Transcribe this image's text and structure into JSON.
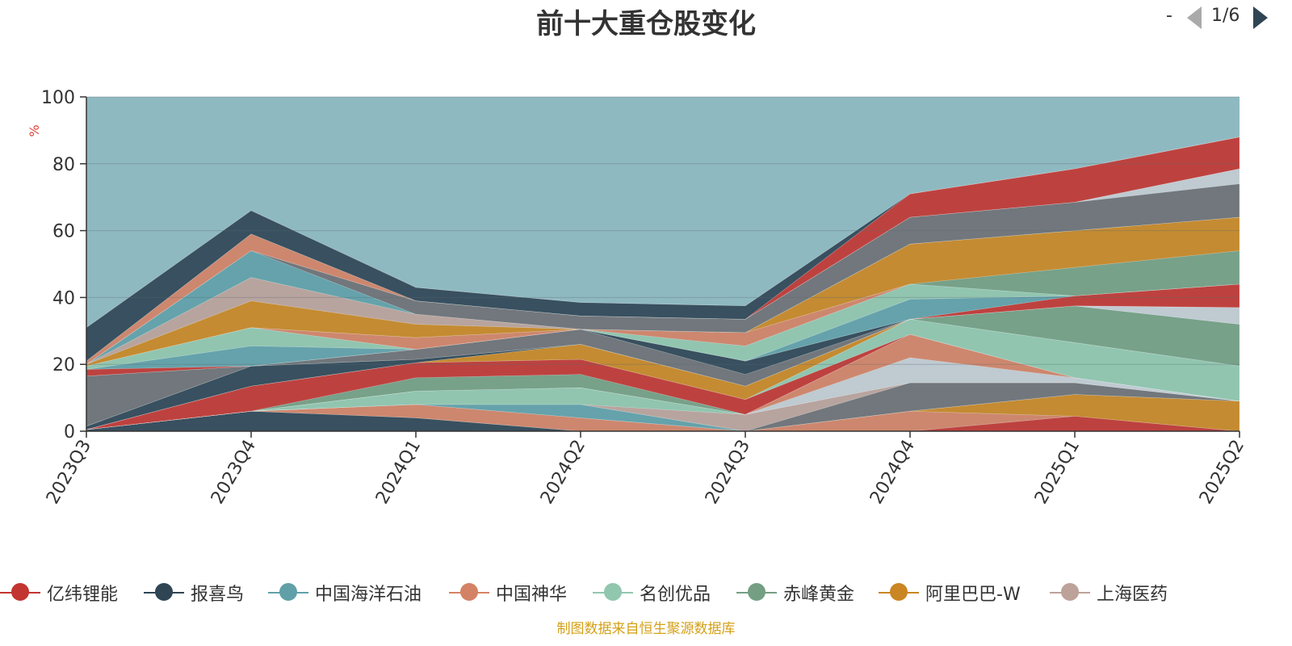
{
  "chart_data": {
    "type": "area",
    "title": "前十大重仓股变化",
    "ylabel": "%",
    "ylim": [
      0,
      100
    ],
    "y_ticks": [
      0,
      20,
      40,
      60,
      80,
      100
    ],
    "grid": true,
    "stacked": true,
    "legend_position": "bottom",
    "categories": [
      "2023Q3",
      "2023Q4",
      "2024Q1",
      "2024Q2",
      "2024Q3",
      "2024Q4",
      "2025Q1",
      "2025Q2"
    ],
    "layers": [
      {
        "color": "#2f4554",
        "values": [
          0.5,
          6,
          4,
          0,
          0,
          0,
          0,
          0
        ]
      },
      {
        "color": "#c23531",
        "values": [
          0,
          0,
          0,
          0,
          0,
          0,
          4.5,
          0
        ]
      },
      {
        "color": "#d48265",
        "values": [
          0,
          0,
          4,
          4,
          0,
          6,
          0,
          0
        ]
      },
      {
        "color": "#ca8622",
        "values": [
          0,
          0,
          0,
          0,
          0,
          0,
          6.5,
          9
        ]
      },
      {
        "color": "#61a0a8",
        "values": [
          0,
          0,
          0,
          4,
          0,
          0,
          0,
          0
        ]
      },
      {
        "color": "#6e7074",
        "values": [
          0,
          0,
          0,
          0,
          0,
          8.5,
          3.5,
          0
        ]
      },
      {
        "color": "#bda29a",
        "values": [
          0,
          0,
          0,
          0,
          5,
          0,
          0,
          0
        ]
      },
      {
        "color": "#91c7ae",
        "values": [
          0,
          0,
          4,
          5,
          0,
          0,
          0,
          0
        ]
      },
      {
        "color": "#c4ccd3",
        "values": [
          0,
          0,
          0,
          0,
          0,
          7.5,
          1.5,
          0
        ]
      },
      {
        "color": "#d48265",
        "values": [
          0,
          0,
          0,
          0,
          0,
          7,
          0,
          0
        ]
      },
      {
        "color": "#749f83",
        "values": [
          0,
          0,
          4,
          4,
          0,
          0,
          0,
          0
        ]
      },
      {
        "color": "#c23531",
        "values": [
          0,
          7.5,
          4.5,
          4.5,
          4.5,
          0,
          0,
          0
        ]
      },
      {
        "color": "#91c7ae",
        "values": [
          0,
          0,
          0,
          0,
          0,
          4.5,
          10.5,
          10.5
        ]
      },
      {
        "color": "#ca8622",
        "values": [
          0,
          0,
          0,
          4.5,
          4,
          0,
          0,
          0
        ]
      },
      {
        "color": "#749f83",
        "values": [
          0,
          0,
          0,
          0,
          0,
          0,
          11,
          12.5
        ]
      },
      {
        "color": "#2f4554",
        "values": [
          1,
          6,
          1,
          0,
          0,
          0,
          0,
          0
        ]
      },
      {
        "color": "#c4ccd3",
        "values": [
          0,
          0,
          0,
          0,
          0,
          0,
          0,
          5
        ]
      },
      {
        "color": "#6e7074",
        "values": [
          15,
          0,
          3,
          4.5,
          3.5,
          0,
          0,
          0
        ]
      },
      {
        "color": "#2f4554",
        "values": [
          0,
          0,
          0,
          0,
          4,
          0,
          0,
          0
        ]
      },
      {
        "color": "#c23531",
        "values": [
          2,
          0,
          0,
          0,
          0,
          0,
          3,
          7
        ]
      },
      {
        "color": "#61a0a8",
        "values": [
          0,
          6,
          0,
          0,
          0,
          6,
          0,
          0
        ]
      },
      {
        "color": "#91c7ae",
        "values": [
          1,
          5.5,
          0,
          0,
          4.5,
          4.5,
          0,
          0
        ]
      },
      {
        "color": "#d48265",
        "values": [
          0,
          0,
          3.5,
          0,
          4,
          0,
          0,
          0
        ]
      },
      {
        "color": "#749f83",
        "values": [
          0,
          0,
          0,
          0,
          0,
          0,
          8.5,
          10
        ]
      },
      {
        "color": "#ca8622",
        "values": [
          0.5,
          8,
          4,
          0,
          0,
          12,
          11,
          10
        ]
      },
      {
        "color": "#bda29a",
        "values": [
          0,
          7,
          3,
          0,
          0,
          0,
          0,
          0
        ]
      },
      {
        "color": "#61a0a8",
        "values": [
          0,
          8,
          0,
          0,
          0,
          0,
          0,
          0
        ]
      },
      {
        "color": "#6e7074",
        "values": [
          0,
          0,
          4,
          4,
          4,
          8,
          8.5,
          10
        ]
      },
      {
        "color": "#c4ccd3",
        "values": [
          0,
          0,
          0,
          0,
          0,
          0,
          0,
          4.5
        ]
      },
      {
        "color": "#d48265",
        "values": [
          1,
          5,
          0,
          0,
          0,
          0,
          0,
          0
        ]
      },
      {
        "color": "#c23531",
        "values": [
          0,
          0,
          0,
          0,
          0,
          7,
          10,
          9.5
        ]
      },
      {
        "color": "#2f4554",
        "values": [
          10,
          7,
          4,
          4,
          4,
          0,
          0,
          0
        ]
      },
      {
        "color": "#61a0a8",
        "values": [
          0,
          0,
          0,
          0,
          0,
          0,
          0,
          0
        ]
      }
    ],
    "series_legend": [
      {
        "name": "亿纬锂能",
        "color": "#c23531"
      },
      {
        "name": "报喜鸟",
        "color": "#2f4554"
      },
      {
        "name": "中国海洋石油",
        "color": "#61a0a8"
      },
      {
        "name": "中国神华",
        "color": "#d48265"
      },
      {
        "name": "名创优品",
        "color": "#91c7ae"
      },
      {
        "name": "赤峰黄金",
        "color": "#749f83"
      },
      {
        "name": "阿里巴巴-W",
        "color": "#ca8622"
      },
      {
        "name": "上海医药",
        "color": "#bda29a"
      }
    ]
  },
  "legend": {
    "more_indicator": "-",
    "page_text": "1/6"
  },
  "footer": {
    "source": "制图数据来自恒生聚源数据库"
  }
}
